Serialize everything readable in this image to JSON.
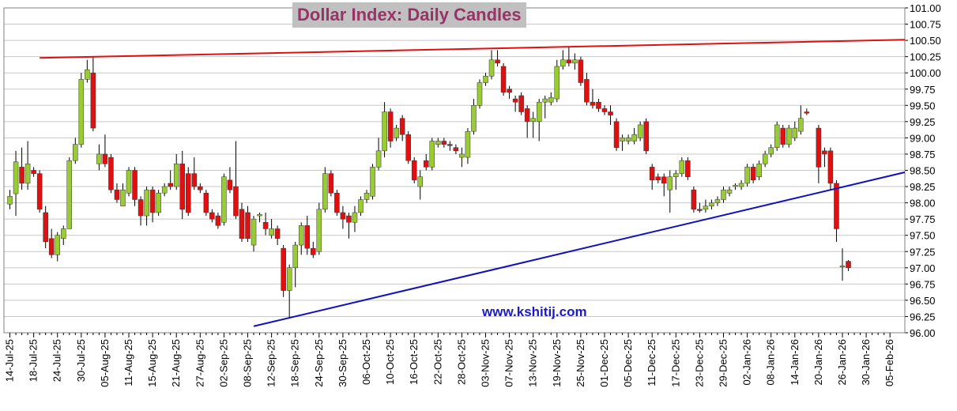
{
  "chart_data": {
    "type": "candlestick",
    "title": "Dollar Index: Daily Candles",
    "annotation": "www.kshitij.com",
    "up_color": "#99cc33",
    "down_color": "#e01010",
    "grid": true,
    "y_axis_side": "right",
    "xlim": [
      -1,
      150.5
    ],
    "ylim": [
      96,
      101
    ],
    "yticks": [
      {
        "value": 96,
        "label": "96.00"
      },
      {
        "value": 96.25,
        "label": "96.25"
      },
      {
        "value": 96.5,
        "label": "96.50"
      },
      {
        "value": 96.75,
        "label": "96.75"
      },
      {
        "value": 97,
        "label": "97.00"
      },
      {
        "value": 97.25,
        "label": "97.25"
      },
      {
        "value": 97.5,
        "label": "97.50"
      },
      {
        "value": 97.75,
        "label": "97.75"
      },
      {
        "value": 98,
        "label": "98.00"
      },
      {
        "value": 98.25,
        "label": "98.25"
      },
      {
        "value": 98.5,
        "label": "98.50"
      },
      {
        "value": 98.75,
        "label": "98.75"
      },
      {
        "value": 99,
        "label": "99.00"
      },
      {
        "value": 99.25,
        "label": "99.25"
      },
      {
        "value": 99.5,
        "label": "99.50"
      },
      {
        "value": 99.75,
        "label": "99.75"
      },
      {
        "value": 100,
        "label": "100.00"
      },
      {
        "value": 100.25,
        "label": "100.25"
      },
      {
        "value": 100.5,
        "label": "100.50"
      },
      {
        "value": 100.75,
        "label": "100.75"
      },
      {
        "value": 101,
        "label": "101.00"
      }
    ],
    "categories": [
      "14-Jul-25",
      null,
      null,
      null,
      "18-Jul-25",
      null,
      null,
      null,
      "24-Jul-25",
      null,
      null,
      null,
      "30-Jul-25",
      null,
      null,
      null,
      "05-Aug-25",
      null,
      null,
      null,
      "11-Aug-25",
      null,
      null,
      null,
      "15-Aug-25",
      null,
      null,
      null,
      "21-Aug-25",
      null,
      null,
      null,
      "27-Aug-25",
      null,
      null,
      null,
      "02-Sep-25",
      null,
      null,
      null,
      "08-Sep-25",
      null,
      null,
      null,
      "12-Sep-25",
      null,
      null,
      null,
      "18-Sep-25",
      null,
      null,
      null,
      "24-Sep-25",
      null,
      null,
      null,
      "30-Sep-25",
      null,
      null,
      null,
      "06-Oct-25",
      null,
      null,
      null,
      "10-Oct-25",
      null,
      null,
      null,
      "16-Oct-25",
      null,
      null,
      null,
      "22-Oct-25",
      null,
      null,
      null,
      "28-Oct-25",
      null,
      null,
      null,
      "03-Nov-25",
      null,
      null,
      null,
      "07-Nov-25",
      null,
      null,
      null,
      "13-Nov-25",
      null,
      null,
      null,
      "19-Nov-25",
      null,
      null,
      null,
      "25-Nov-25",
      null,
      null,
      null,
      "01-Dec-25",
      null,
      null,
      null,
      "05-Dec-25",
      null,
      null,
      null,
      "11-Dec-25",
      null,
      null,
      null,
      "17-Dec-25",
      null,
      null,
      null,
      "23-Dec-25",
      null,
      null,
      null,
      "29-Dec-25",
      null,
      null,
      null,
      "02-Jan-26",
      null,
      null,
      null,
      "08-Jan-26",
      null,
      null,
      null,
      "14-Jan-26",
      null,
      null,
      null,
      "20-Jan-26",
      null,
      null,
      null,
      "26-Jan-26",
      null,
      null,
      null,
      "30-Jan-26",
      null,
      null,
      null,
      "05-Feb-26"
    ],
    "open": [
      97.98,
      98.14,
      98.55,
      98.3,
      98.5,
      98.45,
      97.85,
      97.45,
      97.2,
      97.45,
      97.6,
      98.65,
      98.9,
      99.9,
      100.0,
      98.6,
      98.75,
      98.7,
      98.2,
      97.95,
      98.15,
      98.5,
      98.05,
      97.8,
      98.2,
      97.85,
      98.15,
      98.3,
      98.25,
      98.6,
      98.45,
      98.45,
      98.25,
      98.15,
      97.85,
      97.8,
      97.7,
      98.35,
      98.25,
      97.9,
      97.85,
      97.35,
      97.8,
      97.7,
      97.5,
      97.6,
      97.3,
      96.65,
      97.0,
      97.35,
      97.65,
      97.3,
      97.25,
      97.9,
      98.45,
      98.15,
      97.85,
      97.8,
      97.7,
      97.85,
      98.05,
      98.1,
      98.55,
      98.8,
      99.4,
      99.0,
      99.3,
      99.05,
      98.65,
      98.25,
      98.65,
      98.55,
      98.9,
      98.95,
      98.9,
      98.85,
      98.7,
      98.7,
      99.1,
      99.5,
      99.85,
      99.95,
      100.2,
      100.1,
      99.75,
      99.6,
      99.65,
      99.45,
      99.25,
      99.25,
      99.55,
      99.55,
      99.6,
      100.1,
      100.2,
      100.15,
      100.2,
      99.9,
      99.55,
      99.55,
      99.45,
      99.4,
      99.25,
      98.95,
      98.95,
      98.95,
      99.0,
      99.25,
      98.55,
      98.4,
      98.4,
      98.2,
      98.4,
      98.45,
      98.65,
      98.2,
      97.9,
      97.9,
      97.95,
      98.0,
      98.05,
      98.15,
      98.25,
      98.25,
      98.3,
      98.55,
      98.4,
      98.6,
      98.75,
      98.85,
      99.15,
      98.9,
      99.0,
      99.1,
      99.4,
      null,
      99.15,
      98.8,
      98.8,
      98.3,
      97.02,
      97.1,
      null,
      null,
      null,
      null,
      null,
      null,
      null
    ],
    "high": [
      98.2,
      98.8,
      98.85,
      98.95,
      98.55,
      98.5,
      97.95,
      97.6,
      97.55,
      97.65,
      98.7,
      99.0,
      100.0,
      100.2,
      100.25,
      98.9,
      99.05,
      98.75,
      98.3,
      98.3,
      98.55,
      98.55,
      98.1,
      98.25,
      98.25,
      98.2,
      98.3,
      98.5,
      98.75,
      98.8,
      98.55,
      98.7,
      98.3,
      98.2,
      97.9,
      97.85,
      98.45,
      98.55,
      98.95,
      98.0,
      97.95,
      97.8,
      97.85,
      97.85,
      97.75,
      97.65,
      97.35,
      97.05,
      97.4,
      97.7,
      97.8,
      97.4,
      98.0,
      98.55,
      98.5,
      98.2,
      97.95,
      97.85,
      97.95,
      98.1,
      98.2,
      98.6,
      99.0,
      99.55,
      99.45,
      99.2,
      99.35,
      99.1,
      98.7,
      98.5,
      98.75,
      99.0,
      99.0,
      99.0,
      98.95,
      98.9,
      98.85,
      99.15,
      99.6,
      99.9,
      100.0,
      100.35,
      100.35,
      100.15,
      99.8,
      99.65,
      99.7,
      99.5,
      99.4,
      99.6,
      99.65,
      99.7,
      100.2,
      100.35,
      100.4,
      100.3,
      100.25,
      100.0,
      99.75,
      99.6,
      99.5,
      99.5,
      99.3,
      99.05,
      99.05,
      99.15,
      99.25,
      99.3,
      98.6,
      98.45,
      98.45,
      98.5,
      98.5,
      98.7,
      98.7,
      98.25,
      98.0,
      98.05,
      98.05,
      98.1,
      98.25,
      98.25,
      98.3,
      98.35,
      98.6,
      98.6,
      98.65,
      98.8,
      98.9,
      99.25,
      99.2,
      99.2,
      99.25,
      99.5,
      99.45,
      null,
      99.2,
      98.85,
      98.85,
      98.35,
      97.3,
      97.12,
      null,
      null,
      null,
      null,
      null,
      null,
      null
    ],
    "low": [
      97.9,
      97.8,
      98.2,
      98.2,
      98.4,
      97.85,
      97.3,
      97.15,
      97.1,
      97.35,
      97.6,
      98.6,
      98.85,
      99.85,
      99.1,
      98.5,
      98.55,
      98.15,
      98.0,
      97.95,
      98.1,
      97.95,
      97.65,
      97.65,
      97.7,
      97.8,
      98.1,
      98.2,
      98.2,
      97.75,
      97.8,
      98.2,
      98.15,
      97.8,
      97.7,
      97.6,
      97.65,
      98.15,
      97.75,
      97.4,
      97.4,
      97.25,
      97.7,
      97.5,
      97.45,
      97.35,
      96.55,
      96.22,
      96.7,
      97.2,
      97.2,
      97.15,
      97.2,
      97.85,
      98.1,
      97.8,
      97.6,
      97.45,
      97.55,
      97.8,
      98.0,
      98.05,
      98.5,
      98.7,
      98.85,
      98.95,
      98.95,
      98.6,
      98.3,
      98.05,
      98.5,
      98.5,
      98.85,
      98.85,
      98.8,
      98.75,
      98.55,
      98.6,
      99.05,
      99.45,
      99.8,
      99.9,
      100.1,
      99.65,
      99.6,
      99.4,
      99.35,
      99.0,
      99.0,
      98.95,
      99.3,
      99.5,
      99.55,
      100.05,
      100.1,
      100.05,
      99.8,
      99.5,
      99.45,
      99.4,
      99.35,
      99.2,
      98.8,
      98.8,
      98.9,
      98.9,
      98.95,
      98.75,
      98.2,
      98.3,
      98.1,
      97.85,
      98.2,
      98.4,
      98.35,
      97.85,
      97.85,
      97.85,
      97.9,
      97.95,
      98.0,
      98.1,
      98.2,
      98.2,
      98.25,
      98.3,
      98.35,
      98.55,
      98.7,
      98.8,
      98.85,
      98.85,
      98.95,
      99.05,
      99.35,
      null,
      98.3,
      98.55,
      98.2,
      97.4,
      96.8,
      96.95,
      null,
      null,
      null,
      null,
      null,
      null,
      null
    ],
    "close": [
      98.1,
      98.63,
      98.3,
      98.6,
      98.45,
      97.9,
      97.4,
      97.2,
      97.5,
      97.6,
      98.65,
      98.9,
      99.9,
      100.05,
      99.15,
      98.75,
      98.6,
      98.2,
      98.05,
      98.2,
      98.5,
      98.05,
      97.8,
      98.2,
      97.85,
      98.15,
      98.25,
      98.25,
      98.6,
      97.9,
      97.85,
      98.25,
      98.2,
      97.85,
      97.75,
      97.65,
      98.4,
      98.2,
      97.8,
      97.45,
      97.45,
      97.75,
      97.82,
      97.6,
      97.6,
      97.45,
      96.65,
      97.0,
      97.35,
      97.65,
      97.3,
      97.2,
      97.9,
      98.45,
      98.15,
      97.85,
      97.75,
      97.7,
      97.85,
      98.05,
      98.15,
      98.55,
      98.8,
      99.4,
      98.95,
      99.15,
      99.05,
      98.65,
      98.35,
      98.4,
      98.55,
      98.95,
      98.95,
      98.9,
      98.88,
      98.8,
      98.75,
      99.1,
      99.5,
      99.85,
      99.95,
      100.2,
      100.15,
      99.7,
      99.7,
      99.55,
      99.4,
      99.25,
      99.3,
      99.55,
      99.6,
      99.62,
      100.1,
      100.2,
      100.15,
      100.2,
      99.85,
      99.55,
      99.5,
      99.45,
      99.4,
      99.35,
      98.85,
      99.0,
      99.0,
      99.05,
      99.2,
      98.8,
      98.35,
      98.35,
      98.3,
      98.4,
      98.45,
      98.65,
      98.4,
      97.9,
      97.88,
      97.95,
      98.0,
      98.05,
      98.2,
      98.2,
      98.27,
      98.3,
      98.55,
      98.35,
      98.6,
      98.75,
      98.85,
      99.2,
      98.9,
      99.15,
      99.15,
      99.3,
      99.38,
      null,
      98.55,
      98.75,
      98.3,
      97.6,
      97.03,
      97.0,
      null,
      null,
      null,
      null,
      null,
      null,
      null
    ],
    "trend_lines": [
      {
        "color": "#e01010",
        "x": [
          5,
          150.5
        ],
        "y": [
          100.23,
          100.51
        ]
      },
      {
        "color": "#1010c0",
        "x": [
          41,
          150.5
        ],
        "y": [
          96.1,
          98.47
        ]
      }
    ]
  }
}
